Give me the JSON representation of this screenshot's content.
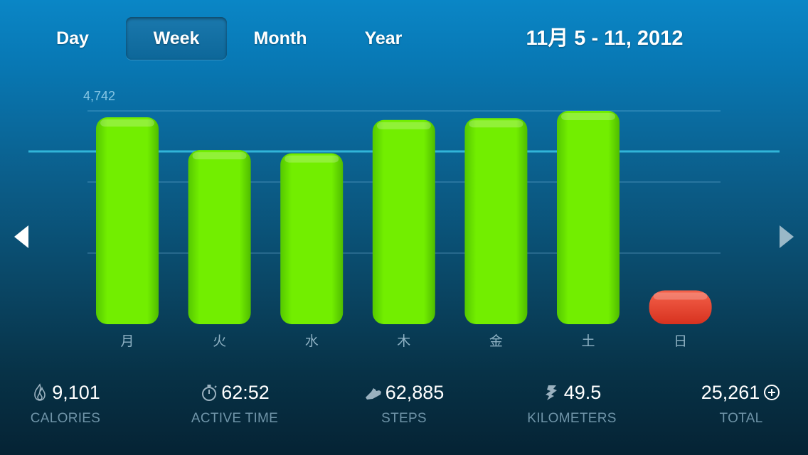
{
  "tabs": [
    {
      "label": "Day",
      "active": false
    },
    {
      "label": "Week",
      "active": true
    },
    {
      "label": "Month",
      "active": false
    },
    {
      "label": "Year",
      "active": false
    }
  ],
  "date_range": "11月 5 - 11, 2012",
  "chart_data": {
    "type": "bar",
    "title": "",
    "xlabel": "",
    "ylabel": "",
    "categories": [
      "月",
      "火",
      "水",
      "木",
      "金",
      "土",
      "日"
    ],
    "values": [
      4600,
      3870,
      3800,
      4540,
      4580,
      4742,
      750
    ],
    "max_label": "4,742",
    "ylim": [
      0,
      5000
    ],
    "bar_colors": [
      "#6ae800",
      "#6ae800",
      "#6ae800",
      "#6ae800",
      "#6ae800",
      "#6ae800",
      "#e8422c"
    ],
    "goal_line": true,
    "grid": true
  },
  "colors": {
    "bar_active": "#6ae800",
    "bar_low": "#e8422c",
    "goal_line": "#3fd0f0"
  },
  "stats": [
    {
      "icon": "flame-icon",
      "value": "9,101",
      "label": "CALORIES"
    },
    {
      "icon": "stopwatch-icon",
      "value": "62:52",
      "label": "ACTIVE TIME"
    },
    {
      "icon": "shoe-icon",
      "value": "62,885",
      "label": "STEPS"
    },
    {
      "icon": "runner-icon",
      "value": "49.5",
      "label": "KILOMETERS"
    },
    {
      "icon": "plus-circle-icon",
      "value": "25,261",
      "label": "TOTAL"
    }
  ]
}
